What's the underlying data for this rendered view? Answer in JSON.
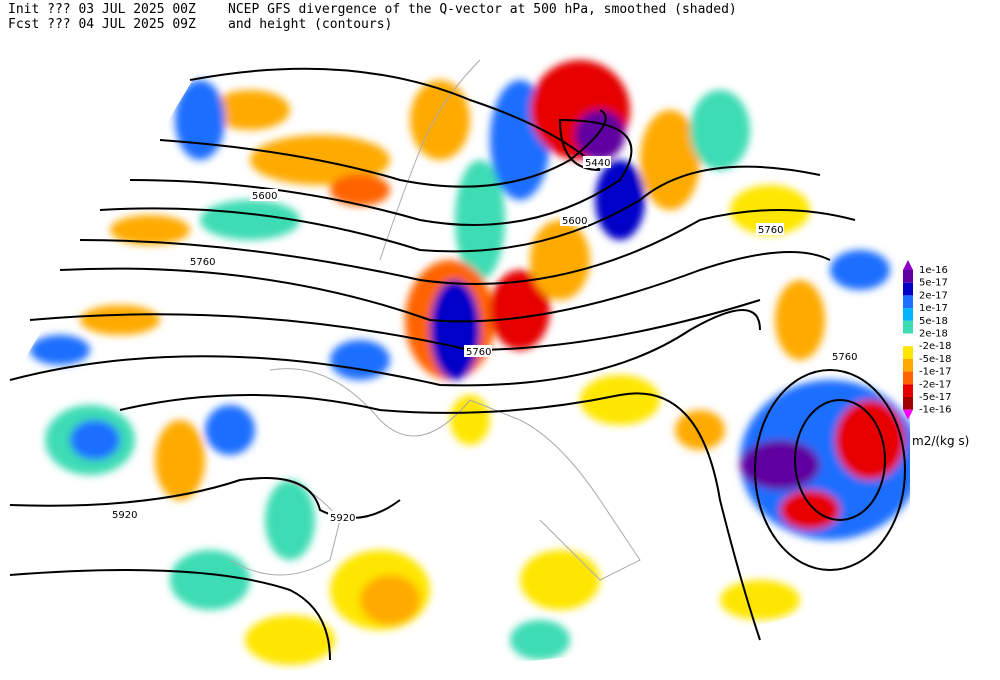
{
  "header": {
    "init": "Init  ??? 03 JUL 2025 00Z",
    "fcst": "Fcst ??? 04 JUL 2025 09Z",
    "title": "NCEP GFS divergence of the Q-vector at 500 hPa, smoothed (shaded)",
    "subtitle": "and height (contours)"
  },
  "contour_labels": [
    "5440",
    "5600",
    "5600",
    "5760",
    "5760",
    "5760",
    "5760",
    "5920",
    "5920"
  ],
  "colorbar": {
    "labels": [
      "1e-16",
      "5e-17",
      "2e-17",
      "1e-17",
      "5e-18",
      "2e-18",
      "-2e-18",
      "-5e-18",
      "-1e-17",
      "-2e-17",
      "-5e-17",
      "-1e-16"
    ],
    "unit": "m2/(kg s)"
  }
}
